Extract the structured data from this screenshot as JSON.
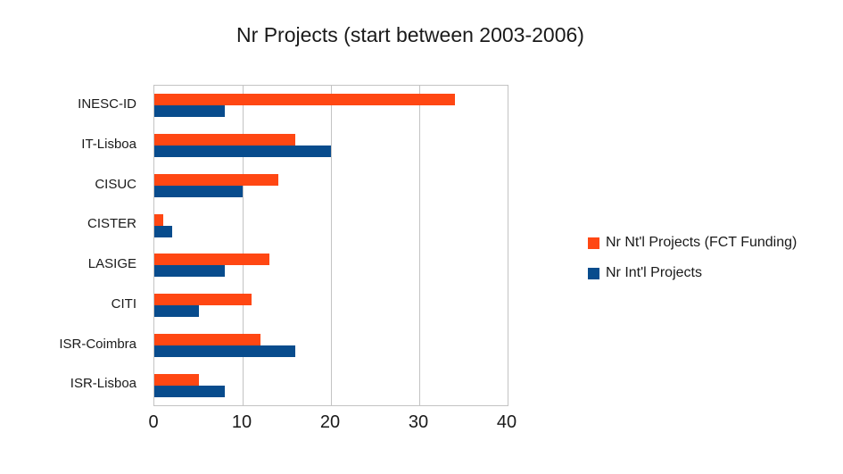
{
  "chart_data": {
    "type": "bar",
    "orientation": "horizontal",
    "title": "Nr Projects (start between 2003-2006)",
    "categories": [
      "INESC-ID",
      "IT-Lisboa",
      "CISUC",
      "CISTER",
      "LASIGE",
      "CITI",
      "ISR-Coimbra",
      "ISR-Lisboa"
    ],
    "series": [
      {
        "name": "Nr Nt'l Projects (FCT Funding)",
        "color": "#ff4713",
        "values": [
          34,
          16,
          14,
          1,
          13,
          11,
          12,
          5
        ]
      },
      {
        "name": "Nr Int'l Projects",
        "color": "#084c8d",
        "values": [
          8,
          20,
          10,
          2,
          8,
          5,
          16,
          8
        ]
      }
    ],
    "x_ticks": [
      0,
      10,
      20,
      30,
      40
    ],
    "xlim": [
      0,
      40
    ],
    "grid": true,
    "legend_position": "right",
    "colors": {
      "grid": "#c3c3c3",
      "text": "#1a1a1a",
      "background": "#ffffff"
    }
  }
}
